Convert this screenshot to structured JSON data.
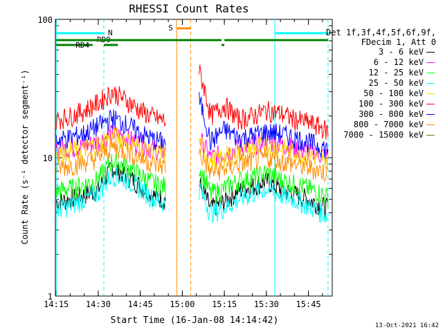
{
  "chart_data": {
    "type": "line",
    "title": "RHESSI Count Rates",
    "xlabel": "Start Time (16-Jan-08 14:14:42)",
    "ylabel": "Count Rate (s⁻¹ detector segment⁻¹)",
    "y_scale": "log",
    "ylim": [
      1,
      100
    ],
    "xlim": [
      "14:15",
      "15:52"
    ],
    "x_ticks": [
      "14:15",
      "14:30",
      "14:45",
      "15:00",
      "15:15",
      "15:30",
      "15:45"
    ],
    "y_ticks": [
      "1",
      "10",
      "100"
    ],
    "grid": false,
    "legend_position": "right",
    "legend_header": [
      "Det 1f,3f,4f,5f,6f,9f,",
      "FDecim 1, Att 0"
    ],
    "data_gap": [
      "14:58",
      "15:06"
    ],
    "series": [
      {
        "name": "3 - 6 keV",
        "color": "#000000",
        "x": [
          "14:15",
          "14:20",
          "14:25",
          "14:30",
          "14:35",
          "14:40",
          "14:45",
          "14:50",
          "14:54",
          "15:06",
          "15:10",
          "15:15",
          "15:20",
          "15:25",
          "15:30",
          "15:35",
          "15:40",
          "15:45",
          "15:50",
          "15:52"
        ],
        "y": [
          4.8,
          5.0,
          5.4,
          5.9,
          8.5,
          7.5,
          6.3,
          5.3,
          5.0,
          6.5,
          4.3,
          4.8,
          5.8,
          6.2,
          6.8,
          5.9,
          5.5,
          5.0,
          4.5,
          4.3
        ]
      },
      {
        "name": "6 - 12 keV",
        "color": "#ff00ff",
        "x": [
          "14:15",
          "14:20",
          "14:25",
          "14:30",
          "14:35",
          "14:40",
          "14:45",
          "14:50",
          "14:54",
          "15:06",
          "15:10",
          "15:15",
          "15:20",
          "15:25",
          "15:30",
          "15:35",
          "15:40",
          "15:45",
          "15:50",
          "15:52"
        ],
        "y": [
          11.5,
          11.8,
          12.2,
          13.0,
          15.0,
          14.0,
          12.5,
          11.5,
          11.0,
          14.0,
          10.0,
          10.8,
          11.8,
          12.5,
          13.0,
          12.5,
          11.8,
          11.0,
          10.5,
          10.2
        ]
      },
      {
        "name": "12 - 25 keV",
        "color": "#00ff00",
        "x": [
          "14:15",
          "14:20",
          "14:25",
          "14:30",
          "14:35",
          "14:40",
          "14:45",
          "14:50",
          "14:54",
          "15:06",
          "15:10",
          "15:15",
          "15:20",
          "15:25",
          "15:30",
          "15:35",
          "15:40",
          "15:45",
          "15:50",
          "15:52"
        ],
        "y": [
          5.8,
          6.0,
          6.4,
          7.0,
          9.5,
          8.7,
          7.5,
          6.5,
          6.2,
          8.5,
          5.5,
          6.0,
          6.8,
          7.2,
          7.8,
          7.0,
          6.5,
          6.0,
          5.5,
          5.2
        ]
      },
      {
        "name": "25 - 50 keV",
        "color": "#00ffff",
        "x": [
          "14:15",
          "14:20",
          "14:25",
          "14:30",
          "14:35",
          "14:40",
          "14:45",
          "14:50",
          "14:54",
          "15:06",
          "15:10",
          "15:15",
          "15:20",
          "15:25",
          "15:30",
          "15:35",
          "15:40",
          "15:45",
          "15:50",
          "15:52"
        ],
        "y": [
          4.2,
          4.5,
          5.0,
          5.6,
          7.5,
          7.0,
          6.0,
          5.0,
          4.7,
          6.0,
          4.0,
          4.3,
          5.0,
          5.5,
          6.0,
          5.4,
          5.0,
          4.5,
          4.0,
          3.7
        ]
      },
      {
        "name": "50 - 100 keV",
        "color": "#ffd700",
        "x": [
          "14:15",
          "14:20",
          "14:25",
          "14:30",
          "14:35",
          "14:40",
          "14:45",
          "14:50",
          "14:54",
          "15:06",
          "15:10",
          "15:15",
          "15:20",
          "15:25",
          "15:30",
          "15:35",
          "15:40",
          "15:45",
          "15:50",
          "15:52"
        ],
        "y": [
          11.0,
          11.2,
          11.8,
          12.5,
          14.5,
          13.5,
          12.0,
          11.0,
          10.5,
          13.0,
          9.5,
          10.2,
          11.0,
          11.8,
          12.3,
          11.8,
          11.0,
          10.5,
          10.0,
          9.7
        ]
      },
      {
        "name": "100 - 300 keV",
        "color": "#ff0000",
        "x": [
          "14:15",
          "14:20",
          "14:25",
          "14:30",
          "14:35",
          "14:40",
          "14:45",
          "14:50",
          "14:54",
          "15:06",
          "15:10",
          "15:15",
          "15:20",
          "15:25",
          "15:30",
          "15:35",
          "15:40",
          "15:45",
          "15:50",
          "15:52"
        ],
        "y": [
          19.0,
          20.0,
          22.0,
          25.0,
          30.0,
          26.0,
          22.0,
          19.5,
          18.5,
          42.0,
          20.0,
          24.0,
          19.0,
          20.0,
          22.0,
          21.0,
          19.0,
          18.0,
          16.5,
          15.5
        ]
      },
      {
        "name": "300 - 800 keV",
        "color": "#0000ff",
        "x": [
          "14:15",
          "14:20",
          "14:25",
          "14:30",
          "14:35",
          "14:40",
          "14:45",
          "14:50",
          "14:54",
          "15:06",
          "15:10",
          "15:15",
          "15:20",
          "15:25",
          "15:30",
          "15:35",
          "15:40",
          "15:45",
          "15:50",
          "15:52"
        ],
        "y": [
          13.5,
          14.0,
          15.0,
          17.0,
          19.5,
          17.5,
          15.0,
          13.5,
          13.0,
          26.0,
          13.0,
          16.0,
          14.0,
          14.5,
          15.5,
          15.0,
          14.0,
          13.0,
          12.0,
          11.5
        ]
      },
      {
        "name": "800 - 7000 keV",
        "color": "#ff8c00",
        "x": [
          "14:15",
          "14:20",
          "14:25",
          "14:30",
          "14:35",
          "14:40",
          "14:45",
          "14:50",
          "14:54",
          "15:06",
          "15:10",
          "15:15",
          "15:20",
          "15:25",
          "15:30",
          "15:35",
          "15:40",
          "15:45",
          "15:50",
          "15:52"
        ],
        "y": [
          8.5,
          8.8,
          9.3,
          10.0,
          12.0,
          11.2,
          10.0,
          9.0,
          8.7,
          11.0,
          7.8,
          8.3,
          9.0,
          9.5,
          10.0,
          9.5,
          9.0,
          8.5,
          8.0,
          7.7
        ]
      },
      {
        "name": "7000 - 15000 keV",
        "color": "#8b6914",
        "x": [],
        "y": []
      }
    ],
    "annotations": [
      {
        "label": "S",
        "type": "interval",
        "range": [
          "14:58",
          "15:03"
        ],
        "color": "#ff8c00"
      },
      {
        "label": "N",
        "type": "interval",
        "range": [
          "14:15",
          "14:32"
        ],
        "color": "#00ffff"
      },
      {
        "label": "",
        "type": "interval",
        "range": [
          "15:33",
          "15:52"
        ],
        "color": "#00ffff"
      },
      {
        "label": "RD0",
        "type": "interval",
        "range": [
          "14:32",
          "14:37"
        ],
        "color": "#008000"
      },
      {
        "label": "RD4",
        "type": "interval",
        "range": [
          "14:15",
          "14:28"
        ],
        "color": "#008000"
      }
    ]
  },
  "footer_date": "13-Oct-2021 16:42"
}
